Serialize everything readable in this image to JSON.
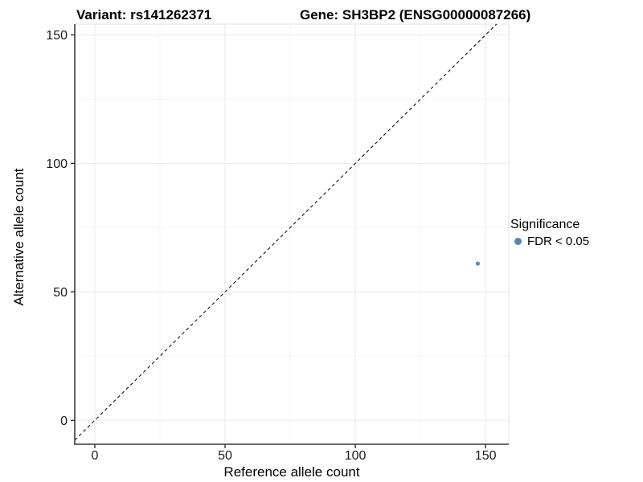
{
  "title": {
    "variant": "Variant: rs141262371",
    "gene": "Gene: SH3BP2 (ENSG00000087266)"
  },
  "chart_data": {
    "type": "scatter",
    "title": "Variant: rs141262371   Gene: SH3BP2 (ENSG00000087266)",
    "xlabel": "Reference allele count",
    "ylabel": "Alternative allele count",
    "x_ticks": [
      0,
      50,
      100,
      150
    ],
    "y_ticks": [
      0,
      50,
      100,
      150
    ],
    "x_minor_ticks": [
      25,
      75,
      125
    ],
    "y_minor_ticks": [
      25,
      75,
      125
    ],
    "xlim": [
      -7.7,
      158.9
    ],
    "ylim": [
      -9.3,
      154.2
    ],
    "grid": true,
    "legend_position": "right",
    "points": [
      {
        "x": 147,
        "y": 61,
        "series": "FDR < 0.05"
      }
    ],
    "reference_line": {
      "label": "identity",
      "slope": 1,
      "intercept": 0,
      "style": "dashed"
    },
    "legend": {
      "title": "Significance",
      "items": [
        {
          "label": "FDR < 0.05",
          "color": "#5585b5"
        }
      ]
    }
  },
  "colors": {
    "point": "#5585b5",
    "grid_major": "#ebebeb",
    "grid_minor": "#f5f5f5",
    "panel_border": "#e3e3e3",
    "axis_line": "#3c3c3c",
    "tick_mark": "#222222",
    "tick_label": "#1a1a1a",
    "dashed_line": "#111111"
  }
}
